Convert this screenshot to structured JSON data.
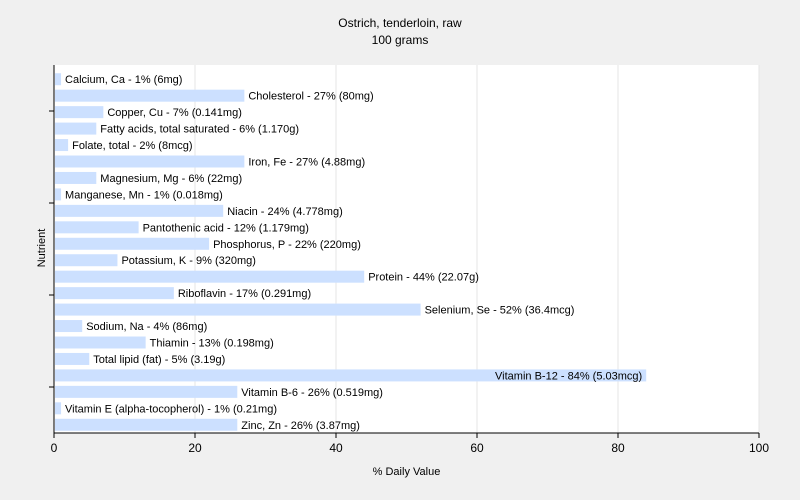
{
  "chart_data": {
    "type": "bar",
    "orientation": "horizontal",
    "title": "Ostrich, tenderloin, raw",
    "subtitle": "100 grams",
    "xlabel": "% Daily Value",
    "ylabel": "Nutrient",
    "xlim": [
      0,
      100
    ],
    "xticks": [
      0,
      20,
      40,
      60,
      80,
      100
    ],
    "grid": "vertical",
    "bar_color": "#cce0ff",
    "categories": [
      "Calcium, Ca",
      "Cholesterol",
      "Copper, Cu",
      "Fatty acids, total saturated",
      "Folate, total",
      "Iron, Fe",
      "Magnesium, Mg",
      "Manganese, Mn",
      "Niacin",
      "Pantothenic acid",
      "Phosphorus, P",
      "Potassium, K",
      "Protein",
      "Riboflavin",
      "Selenium, Se",
      "Sodium, Na",
      "Thiamin",
      "Total lipid (fat)",
      "Vitamin B-12",
      "Vitamin B-6",
      "Vitamin E (alpha-tocopherol)",
      "Zinc, Zn"
    ],
    "values": [
      1,
      27,
      7,
      6,
      2,
      27,
      6,
      1,
      24,
      12,
      22,
      9,
      44,
      17,
      52,
      4,
      13,
      5,
      84,
      26,
      1,
      26
    ],
    "bar_labels": [
      "Calcium, Ca - 1% (6mg)",
      "Cholesterol - 27% (80mg)",
      "Copper, Cu - 7% (0.141mg)",
      "Fatty acids, total saturated - 6% (1.170g)",
      "Folate, total - 2% (8mcg)",
      "Iron, Fe - 27% (4.88mg)",
      "Magnesium, Mg - 6% (22mg)",
      "Manganese, Mn - 1% (0.018mg)",
      "Niacin - 24% (4.778mg)",
      "Pantothenic acid - 12% (1.179mg)",
      "Phosphorus, P - 22% (220mg)",
      "Potassium, K - 9% (320mg)",
      "Protein - 44% (22.07g)",
      "Riboflavin - 17% (0.291mg)",
      "Selenium, Se - 52% (36.4mcg)",
      "Sodium, Na - 4% (86mg)",
      "Thiamin - 13% (0.198mg)",
      "Total lipid (fat) - 5% (3.19g)",
      "Vitamin B-12 - 84% (5.03mcg)",
      "Vitamin B-6 - 26% (0.519mg)",
      "Vitamin E (alpha-tocopherol) - 1% (0.21mg)",
      "Zinc, Zn - 26% (3.87mg)"
    ]
  }
}
